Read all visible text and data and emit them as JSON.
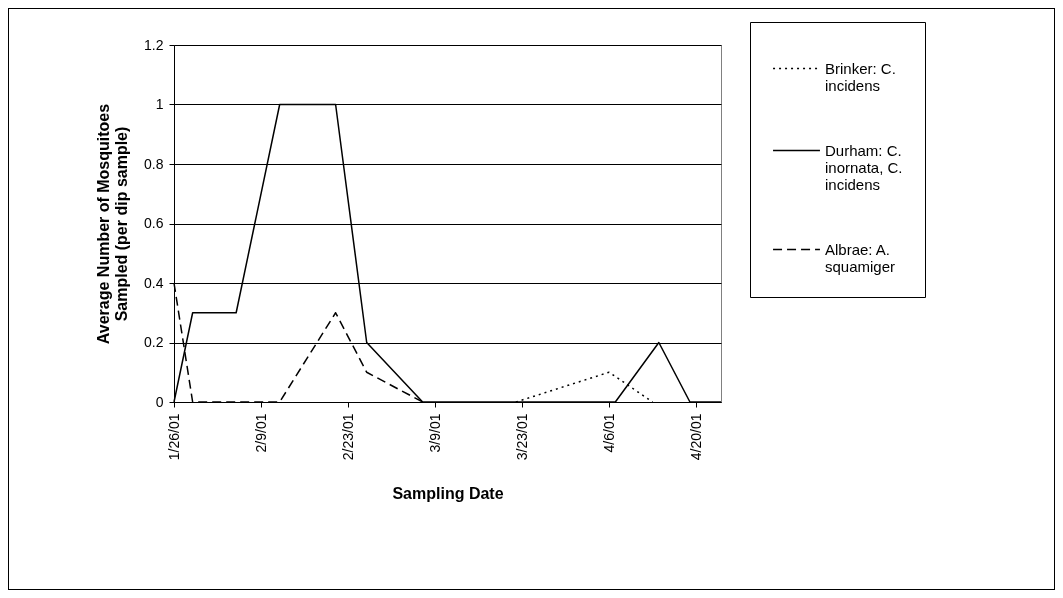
{
  "chart_data": {
    "type": "line",
    "xlabel": "Sampling Date",
    "ylabel": "Average Number of Mosquitoes Sampled (per dip sample)",
    "xlim": [
      "2001-01-26",
      "2001-04-24"
    ],
    "xticks": [
      {
        "value": "2001-01-26",
        "label": "1/26/01"
      },
      {
        "value": "2001-02-09",
        "label": "2/9/01"
      },
      {
        "value": "2001-02-23",
        "label": "2/23/01"
      },
      {
        "value": "2001-03-09",
        "label": "3/9/01"
      },
      {
        "value": "2001-03-23",
        "label": "3/23/01"
      },
      {
        "value": "2001-04-06",
        "label": "4/6/01"
      },
      {
        "value": "2001-04-20",
        "label": "4/20/01"
      }
    ],
    "ylim": [
      0,
      1.2
    ],
    "yticks": [
      0,
      0.2,
      0.4,
      0.6,
      0.8,
      1,
      1.2
    ],
    "grid": "y",
    "legend": "right",
    "series": [
      {
        "name": "Brinker: C. incidens",
        "color": "#000000",
        "line_style": "dotted",
        "x": [
          "2001-03-22",
          "2001-04-06",
          "2001-04-13"
        ],
        "values": [
          0,
          0.1,
          0
        ]
      },
      {
        "name": "Durham: C. inornata, C. incidens",
        "color": "#000000",
        "line_style": "solid",
        "x": [
          "2001-01-26",
          "2001-01-29",
          "2001-02-05",
          "2001-02-12",
          "2001-02-21",
          "2001-02-26",
          "2001-03-07",
          "2001-04-07",
          "2001-04-14",
          "2001-04-19",
          "2001-04-24"
        ],
        "values": [
          0,
          0.3,
          0.3,
          1,
          1,
          0.2,
          0,
          0,
          0.2,
          0,
          0
        ]
      },
      {
        "name": "Albrae: A. squamiger",
        "color": "#000000",
        "line_style": "dashed",
        "x": [
          "2001-01-26",
          "2001-01-29",
          "2001-02-12",
          "2001-02-21",
          "2001-02-26",
          "2001-03-07"
        ],
        "values": [
          0.4,
          0,
          0,
          0.3,
          0.1,
          0
        ]
      }
    ]
  }
}
